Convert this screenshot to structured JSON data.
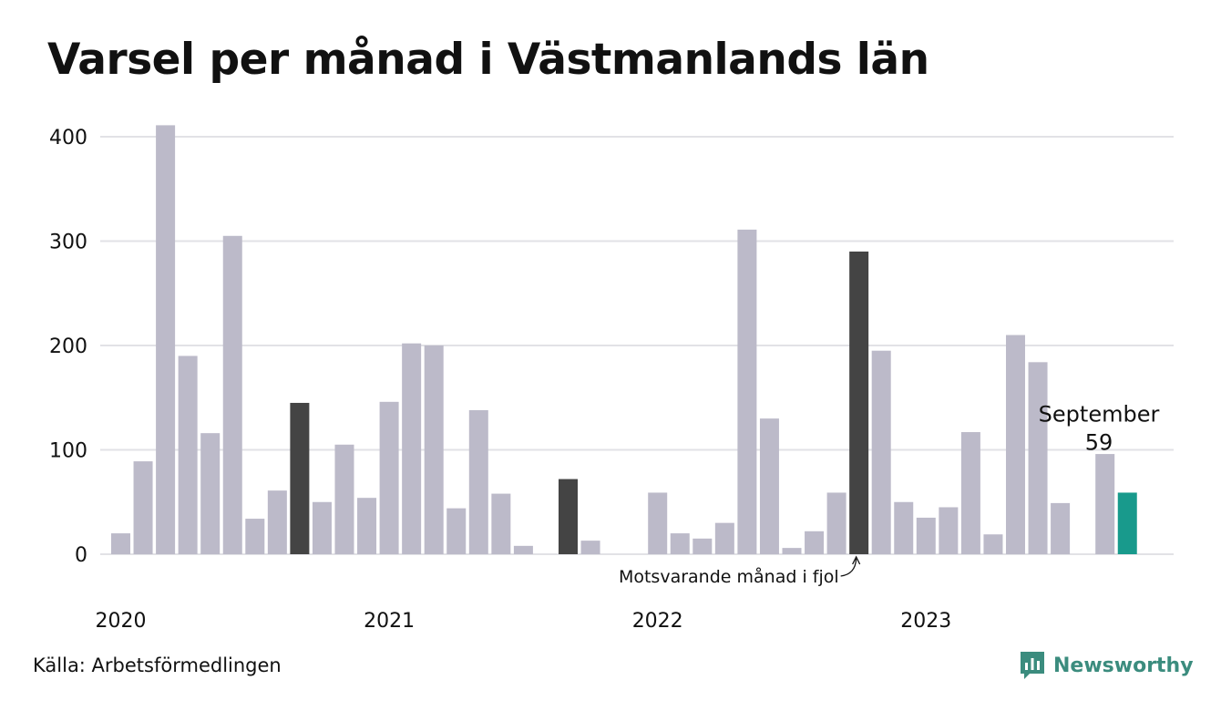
{
  "title": "Varsel per månad i Västmanlands län",
  "source": "Källa: Arbetsförmedlingen",
  "brand": {
    "name": "Newsworthy",
    "icon": "newsworthy-logo-icon",
    "color": "#3b8c7e"
  },
  "chart_data": {
    "type": "bar",
    "ylim": [
      0,
      400
    ],
    "yticks": [
      0,
      100,
      200,
      300,
      400
    ],
    "grid": true,
    "xtick_labels": [
      {
        "label": "2020",
        "index": 0
      },
      {
        "label": "2021",
        "index": 12
      },
      {
        "label": "2022",
        "index": 24
      },
      {
        "label": "2023",
        "index": 36
      }
    ],
    "values": [
      20,
      89,
      411,
      190,
      116,
      305,
      34,
      61,
      145,
      50,
      105,
      54,
      146,
      202,
      200,
      44,
      138,
      58,
      8,
      0,
      72,
      13,
      0,
      0,
      59,
      20,
      15,
      30,
      311,
      130,
      6,
      22,
      59,
      290,
      195,
      50,
      35,
      45,
      117,
      19,
      210,
      184,
      49,
      0,
      96,
      59
    ],
    "highlight_same_month": [
      8,
      20,
      33
    ],
    "current_index": 45,
    "colors": {
      "default": "#bcbac9",
      "same_month": "#444444",
      "current": "#189a8c"
    },
    "current_label": {
      "month": "September",
      "value": "59"
    },
    "annotation": {
      "text": "Motsvarande månad i fjol",
      "target_index": 33
    }
  }
}
